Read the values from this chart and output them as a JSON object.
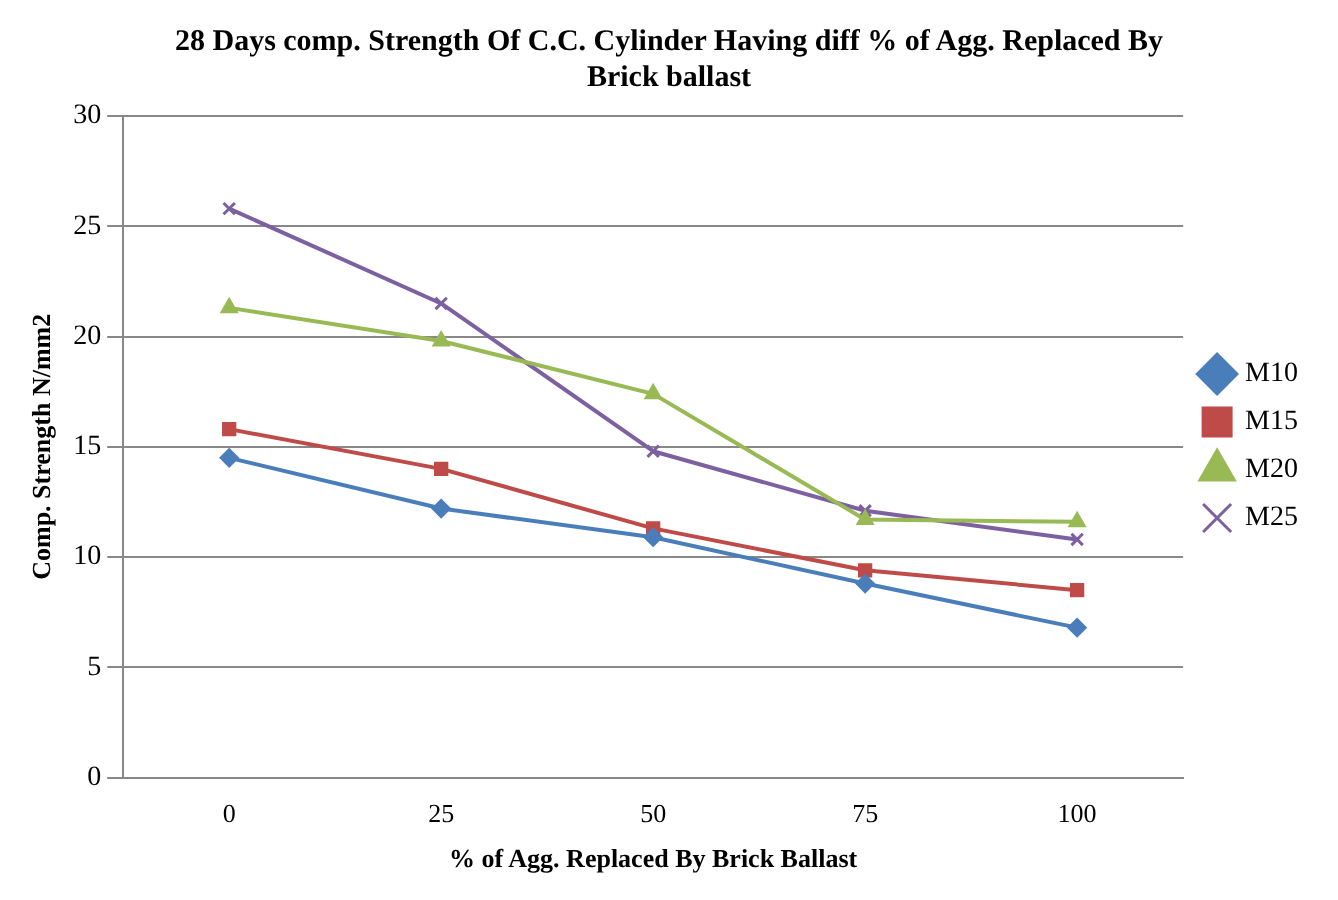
{
  "chart_data": {
    "type": "line",
    "title": "28 Days comp. Strength Of C.C. Cylinder Having diff % of Agg. Replaced By Brick ballast",
    "xlabel": "% of Agg. Replaced By Brick Ballast",
    "ylabel": "Comp. Strength N/mm2",
    "categories": [
      "0",
      "25",
      "50",
      "75",
      "100"
    ],
    "series": [
      {
        "name": "M10",
        "color": "#4a7ebb",
        "marker": "diamond",
        "values": [
          14.5,
          12.2,
          10.9,
          8.8,
          6.8
        ]
      },
      {
        "name": "M15",
        "color": "#be4b48",
        "marker": "square",
        "values": [
          15.8,
          14.0,
          11.3,
          9.4,
          8.5
        ]
      },
      {
        "name": "M20",
        "color": "#98b954",
        "marker": "triangle",
        "values": [
          21.3,
          19.8,
          17.4,
          11.7,
          11.6
        ]
      },
      {
        "name": "M25",
        "color": "#7d60a0",
        "marker": "cross",
        "values": [
          25.8,
          21.5,
          14.8,
          12.1,
          10.8
        ]
      }
    ],
    "ylim": [
      0,
      30
    ],
    "yticks": [
      0,
      5,
      10,
      15,
      20,
      25,
      30
    ],
    "grid": "y",
    "legend": "right"
  }
}
